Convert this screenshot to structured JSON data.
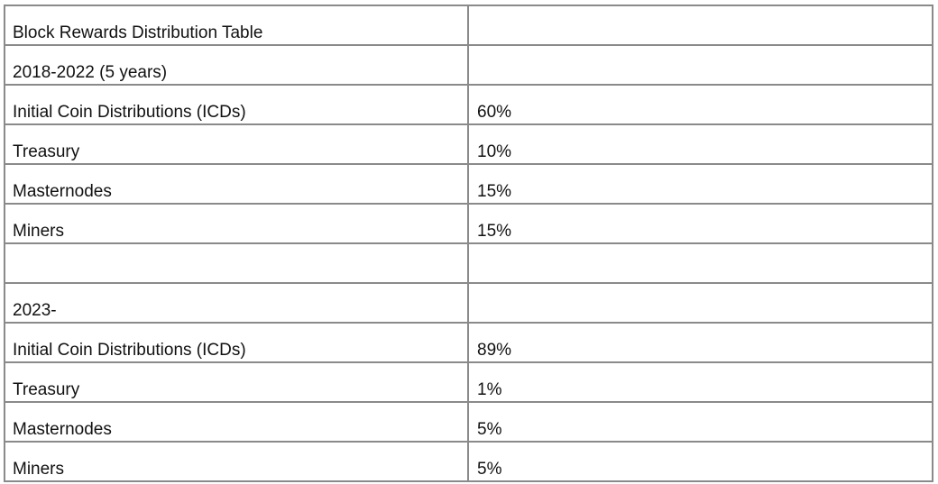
{
  "table": {
    "rows": [
      {
        "label": "Block Rewards Distribution Table",
        "value": ""
      },
      {
        "label": "2018-2022 (5 years)",
        "value": ""
      },
      {
        "label": "Initial Coin Distributions (ICDs)",
        "value": "60%"
      },
      {
        "label": "Treasury",
        "value": "10%"
      },
      {
        "label": "Masternodes",
        "value": "15%"
      },
      {
        "label": "Miners",
        "value": "15%"
      },
      {
        "label": "",
        "value": ""
      },
      {
        "label": "2023-",
        "value": ""
      },
      {
        "label": "Initial Coin Distributions (ICDs)",
        "value": "89%"
      },
      {
        "label": "Treasury",
        "value": "1%"
      },
      {
        "label": "Masternodes",
        "value": "5%"
      },
      {
        "label": "Miners",
        "value": "5%"
      }
    ]
  },
  "colors": {
    "border": "#8a8a8a",
    "text": "#111111",
    "background": "#ffffff"
  }
}
